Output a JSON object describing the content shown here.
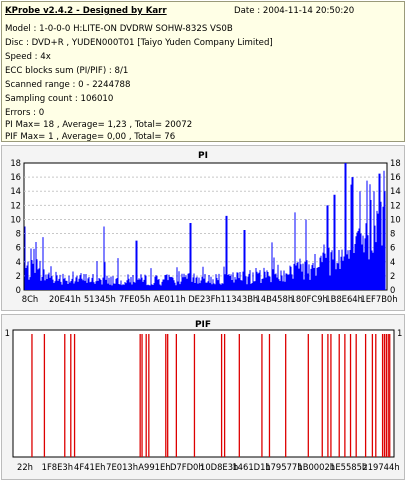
{
  "info": {
    "header": "KProbe v2.4.2 - Designed by Karr",
    "date": "Date : 2004-11-14 20:50:20",
    "lines": [
      "Model : 1-0-0-0 H:LITE-ON DVDRW SOHW-832S  VS0B",
      "Disc : DVD+R , YUDEN000T01 [Taiyo Yuden Company Limited]",
      "Speed : 4x",
      "ECC blocks sum (PI/PIF) : 8/1",
      "Scanned range : 0 - 2244788",
      "Sampling count : 106010",
      "Errors : 0",
      "PI Max= 18 , Average= 1,23 , Total= 20072",
      "PIF Max= 1 , Average= 0,00 , Total= 76"
    ]
  },
  "chart_data": [
    {
      "type": "bar",
      "title": "PI",
      "ylim": [
        0,
        18
      ],
      "yticks": [
        "0",
        "2",
        "4",
        "6",
        "8",
        "10",
        "12",
        "14",
        "16",
        "18"
      ],
      "xticks": [
        "8Ch",
        "20E41h",
        "51345h",
        "7FE05h",
        "AE011h",
        "DE23Fh",
        "11343Bh",
        "14B458h",
        "180FC9h",
        "1B8E64h",
        "1EF7B0h"
      ],
      "grid": true,
      "color": "#0000ff",
      "envelope": [
        [
          0.0,
          3.8
        ],
        [
          0.02,
          3.2
        ],
        [
          0.05,
          2.6
        ],
        [
          0.1,
          2.2
        ],
        [
          0.15,
          2.0
        ],
        [
          0.2,
          1.9
        ],
        [
          0.25,
          1.8
        ],
        [
          0.3,
          1.8
        ],
        [
          0.35,
          1.8
        ],
        [
          0.4,
          1.8
        ],
        [
          0.45,
          1.9
        ],
        [
          0.5,
          2.0
        ],
        [
          0.55,
          2.0
        ],
        [
          0.6,
          2.2
        ],
        [
          0.65,
          2.6
        ],
        [
          0.7,
          3.0
        ],
        [
          0.75,
          3.6
        ],
        [
          0.8,
          4.2
        ],
        [
          0.85,
          5.2
        ],
        [
          0.9,
          6.2
        ],
        [
          0.95,
          8.0
        ],
        [
          1.0,
          11.5
        ]
      ],
      "peaks": [
        [
          0.0,
          9.0
        ],
        [
          0.05,
          7.5
        ],
        [
          0.22,
          9.0
        ],
        [
          0.31,
          7.0
        ],
        [
          0.46,
          9.5
        ],
        [
          0.56,
          10.5
        ],
        [
          0.61,
          8.5
        ],
        [
          0.75,
          11.0
        ],
        [
          0.78,
          10.0
        ],
        [
          0.84,
          12.0
        ],
        [
          0.86,
          13.5
        ],
        [
          0.89,
          18.0
        ],
        [
          0.91,
          16.0
        ],
        [
          0.93,
          14.0
        ],
        [
          0.95,
          15.5
        ],
        [
          0.97,
          14.0
        ],
        [
          0.985,
          16.5
        ],
        [
          1.0,
          14.0
        ]
      ]
    },
    {
      "type": "bar",
      "title": "PIF",
      "ylim": [
        0,
        1
      ],
      "yticks": [
        "1"
      ],
      "xticks": [
        "22h",
        "1F8E3h",
        "4F41Eh",
        "7E013h",
        "A991Eh",
        "D7FD0h",
        "10D8E3h",
        "1461D1h",
        "179577h",
        "1B0002h",
        "1E5585h",
        "219744h"
      ],
      "grid": true,
      "color": "#dd0000",
      "values": [
        1,
        1,
        1,
        1,
        1,
        1,
        1,
        1,
        1,
        1,
        1,
        1,
        1,
        1,
        1,
        1,
        1,
        1,
        1,
        1,
        1,
        1,
        1,
        1,
        1,
        1,
        1,
        1,
        1,
        1,
        1,
        1,
        1,
        1,
        1
      ],
      "positions": [
        0.045,
        0.078,
        0.132,
        0.148,
        0.158,
        0.332,
        0.337,
        0.348,
        0.355,
        0.4,
        0.405,
        0.428,
        0.476,
        0.548,
        0.556,
        0.595,
        0.655,
        0.675,
        0.718,
        0.778,
        0.815,
        0.83,
        0.838,
        0.86,
        0.875,
        0.89,
        0.905,
        0.93,
        0.948,
        0.957,
        0.975,
        0.98,
        0.985,
        0.99,
        0.994
      ]
    }
  ]
}
